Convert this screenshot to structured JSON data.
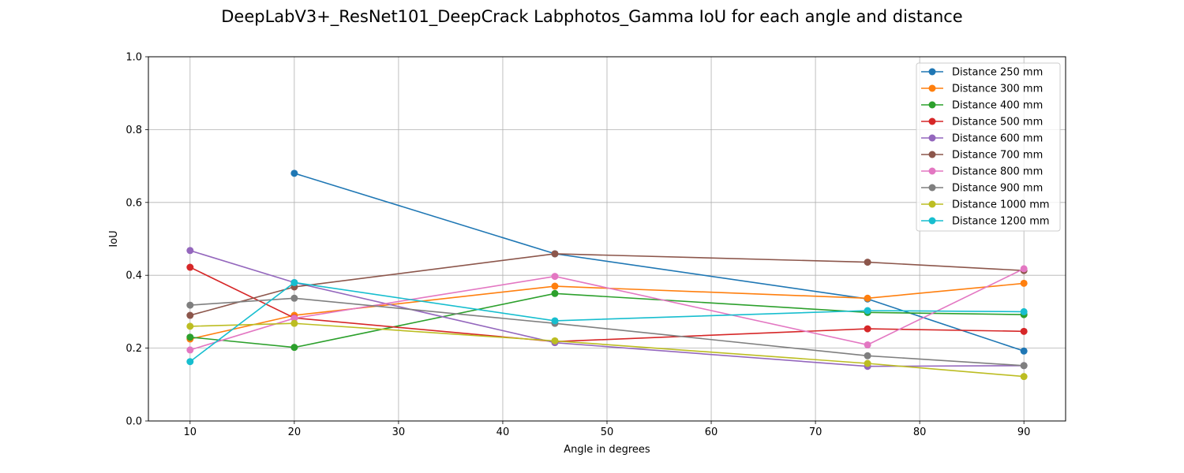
{
  "chart_data": {
    "type": "line",
    "title": "DeepLabV3+_ResNet101_DeepCrack Labphotos_Gamma IoU for each angle and distance",
    "xlabel": "Angle in degrees",
    "ylabel": "IoU",
    "xlim": [
      6,
      94
    ],
    "ylim": [
      0.0,
      1.0
    ],
    "x_ticks": [
      10,
      20,
      30,
      40,
      50,
      60,
      70,
      80,
      90
    ],
    "y_ticks": [
      0.0,
      0.2,
      0.4,
      0.6,
      0.8,
      1.0
    ],
    "x_tick_labels": [
      "10",
      "20",
      "30",
      "40",
      "50",
      "60",
      "70",
      "80",
      "90"
    ],
    "y_tick_labels": [
      "0.0",
      "0.2",
      "0.4",
      "0.6",
      "0.8",
      "1.0"
    ],
    "grid": true,
    "legend_position": "top-right",
    "series": [
      {
        "name": "Distance 250 mm",
        "color": "#1f77b4",
        "x": [
          20,
          45,
          75,
          90
        ],
        "y": [
          0.68,
          0.459,
          0.335,
          0.192
        ]
      },
      {
        "name": "Distance 300 mm",
        "color": "#ff7f0e",
        "x": [
          10,
          20,
          45,
          75,
          90
        ],
        "y": [
          0.225,
          0.29,
          0.37,
          0.337,
          0.378
        ]
      },
      {
        "name": "Distance 400 mm",
        "color": "#2ca02c",
        "x": [
          10,
          20,
          45,
          75,
          90
        ],
        "y": [
          0.23,
          0.202,
          0.35,
          0.298,
          0.292
        ]
      },
      {
        "name": "Distance 500 mm",
        "color": "#d62728",
        "x": [
          10,
          20,
          45,
          75,
          90
        ],
        "y": [
          0.422,
          0.283,
          0.218,
          0.253,
          0.246
        ]
      },
      {
        "name": "Distance 600 mm",
        "color": "#9467bd",
        "x": [
          10,
          20,
          45,
          75,
          90
        ],
        "y": [
          0.468,
          0.38,
          0.215,
          0.15,
          0.152
        ]
      },
      {
        "name": "Distance 700 mm",
        "color": "#8c564b",
        "x": [
          10,
          20,
          45,
          75,
          90
        ],
        "y": [
          0.29,
          0.368,
          0.459,
          0.436,
          0.413
        ]
      },
      {
        "name": "Distance 800 mm",
        "color": "#e377c2",
        "x": [
          10,
          20,
          45,
          75,
          90
        ],
        "y": [
          0.195,
          0.282,
          0.397,
          0.209,
          0.418
        ]
      },
      {
        "name": "Distance 900 mm",
        "color": "#7f7f7f",
        "x": [
          10,
          20,
          45,
          75,
          90
        ],
        "y": [
          0.318,
          0.337,
          0.268,
          0.179,
          0.152
        ]
      },
      {
        "name": "Distance 1000 mm",
        "color": "#bcbd22",
        "x": [
          10,
          20,
          45,
          75,
          90
        ],
        "y": [
          0.26,
          0.268,
          0.22,
          0.158,
          0.122
        ]
      },
      {
        "name": "Distance 1200 mm",
        "color": "#17becf",
        "x": [
          10,
          20,
          45,
          75,
          90
        ],
        "y": [
          0.163,
          0.38,
          0.275,
          0.303,
          0.3
        ]
      }
    ]
  }
}
